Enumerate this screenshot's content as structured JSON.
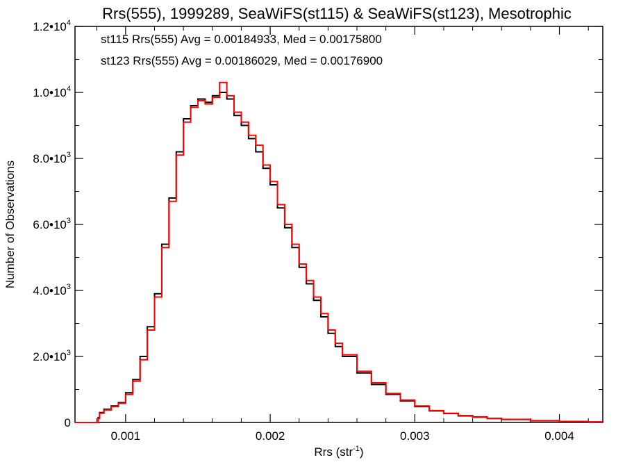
{
  "chart_data": {
    "type": "line",
    "step": true,
    "title": "Rrs(555), 1999289, SeaWiFS(st115) & SeaWiFS(st123), Mesotrophic",
    "xlabel_base": "Rrs (str",
    "xlabel_sup": "-1",
    "xlabel_close": ")",
    "ylabel": "Number of Observations",
    "xlim": [
      0.00065,
      0.0043
    ],
    "ylim": [
      0,
      12000
    ],
    "x_ticks": [
      {
        "value": 0.001,
        "label": "0.001"
      },
      {
        "value": 0.002,
        "label": "0.002"
      },
      {
        "value": 0.003,
        "label": "0.003"
      },
      {
        "value": 0.004,
        "label": "0.004"
      }
    ],
    "y_ticks": [
      {
        "value": 0,
        "label": "0",
        "sup": ""
      },
      {
        "value": 2000,
        "label": "2.0•10",
        "sup": "3"
      },
      {
        "value": 4000,
        "label": "4.0•10",
        "sup": "3"
      },
      {
        "value": 6000,
        "label": "6.0•10",
        "sup": "3"
      },
      {
        "value": 8000,
        "label": "8.0•10",
        "sup": "3"
      },
      {
        "value": 10000,
        "label": "1.0•10",
        "sup": "4"
      },
      {
        "value": 12000,
        "label": "1.2•10",
        "sup": "4"
      }
    ],
    "annotations": [
      {
        "text": "st115 Rrs(555) Avg = 0.00184933, Med = 0.00175800",
        "color": "#000000"
      },
      {
        "text": "st123 Rrs(555) Avg = 0.00186029, Med = 0.00176900",
        "color": "#ff0000"
      }
    ],
    "series": [
      {
        "color": "#000000",
        "x": [
          0.00065,
          0.00075,
          0.0008,
          0.00081,
          0.00082,
          0.00085,
          0.0009,
          0.00095,
          0.001,
          0.00105,
          0.0011,
          0.00115,
          0.0012,
          0.00125,
          0.0013,
          0.00135,
          0.0014,
          0.00145,
          0.0015,
          0.00155,
          0.0016,
          0.00165,
          0.0017,
          0.00175,
          0.0018,
          0.00185,
          0.0019,
          0.00195,
          0.002,
          0.00205,
          0.0021,
          0.00215,
          0.0022,
          0.00225,
          0.0023,
          0.00235,
          0.0024,
          0.00245,
          0.0025,
          0.0026,
          0.0027,
          0.0028,
          0.0029,
          0.003,
          0.0031,
          0.0032,
          0.0033,
          0.0034,
          0.0035,
          0.0036,
          0.0038,
          0.004,
          0.0042,
          0.0043
        ],
        "y": [
          0,
          0,
          0,
          150,
          300,
          400,
          500,
          600,
          900,
          1300,
          2000,
          2900,
          3900,
          5400,
          6800,
          8200,
          9200,
          9600,
          9800,
          9700,
          9900,
          10000,
          9800,
          9300,
          9000,
          8600,
          8200,
          7700,
          7200,
          6500,
          5900,
          5300,
          4700,
          4200,
          3700,
          3200,
          2700,
          2300,
          2000,
          1500,
          1150,
          850,
          650,
          480,
          350,
          270,
          200,
          160,
          120,
          90,
          50,
          30,
          15,
          5
        ]
      },
      {
        "color": "#ff0000",
        "x": [
          0.00065,
          0.00075,
          0.0008,
          0.00081,
          0.00082,
          0.00085,
          0.0009,
          0.00095,
          0.001,
          0.00105,
          0.0011,
          0.00115,
          0.0012,
          0.00125,
          0.0013,
          0.00135,
          0.0014,
          0.00145,
          0.0015,
          0.00155,
          0.0016,
          0.00165,
          0.0017,
          0.00175,
          0.0018,
          0.00185,
          0.0019,
          0.00195,
          0.002,
          0.00205,
          0.0021,
          0.00215,
          0.0022,
          0.00225,
          0.0023,
          0.00235,
          0.0024,
          0.00245,
          0.0025,
          0.0026,
          0.0027,
          0.0028,
          0.0029,
          0.003,
          0.0031,
          0.0032,
          0.0033,
          0.0034,
          0.0035,
          0.0036,
          0.0038,
          0.004,
          0.0042,
          0.0043
        ],
        "y": [
          0,
          0,
          0,
          120,
          280,
          380,
          480,
          580,
          850,
          1250,
          1900,
          2800,
          3800,
          5300,
          6700,
          8100,
          9100,
          9550,
          9750,
          9650,
          9850,
          10300,
          9900,
          9400,
          9100,
          8700,
          8400,
          7800,
          7300,
          6600,
          6000,
          5400,
          4800,
          4300,
          3800,
          3300,
          2800,
          2400,
          2050,
          1550,
          1200,
          880,
          680,
          500,
          360,
          280,
          210,
          170,
          125,
          95,
          55,
          32,
          16,
          6
        ]
      }
    ]
  }
}
